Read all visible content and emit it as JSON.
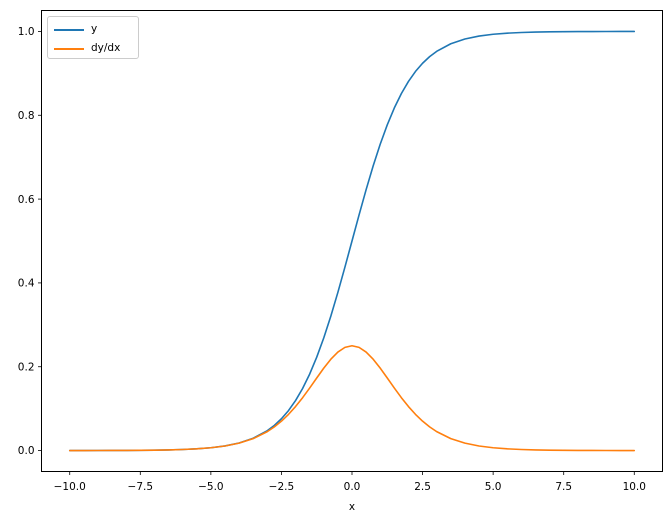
{
  "figure": {
    "background_color": "#ffffff",
    "axis_color": "#000000",
    "legend_border_color": "#cccccc"
  },
  "chart_data": {
    "type": "line",
    "title": "",
    "xlabel": "x",
    "ylabel": "",
    "xlim": [
      -11,
      11
    ],
    "ylim": [
      -0.05,
      1.05
    ],
    "grid": false,
    "x_ticks": [
      -10.0,
      -7.5,
      -5.0,
      -2.5,
      0.0,
      2.5,
      5.0,
      7.5,
      10.0
    ],
    "x_tick_labels": [
      "−10.0",
      "−7.5",
      "−5.0",
      "−2.5",
      "0.0",
      "2.5",
      "5.0",
      "7.5",
      "10.0"
    ],
    "y_ticks": [
      0.0,
      0.2,
      0.4,
      0.6,
      0.8,
      1.0
    ],
    "y_tick_labels": [
      "0.0",
      "0.2",
      "0.4",
      "0.6",
      "0.8",
      "1.0"
    ],
    "legend": {
      "position": "upper left",
      "entries": [
        {
          "label": "y",
          "color": "#1f77b4"
        },
        {
          "label": "dy/dx",
          "color": "#ff7f0e"
        }
      ]
    },
    "x": [
      -10,
      -9.5,
      -9,
      -8.5,
      -8,
      -7.5,
      -7,
      -6.5,
      -6,
      -5.5,
      -5,
      -4.5,
      -4,
      -3.5,
      -3,
      -2.75,
      -2.5,
      -2.25,
      -2,
      -1.75,
      -1.5,
      -1.25,
      -1,
      -0.75,
      -0.5,
      -0.25,
      0,
      0.25,
      0.5,
      0.75,
      1,
      1.25,
      1.5,
      1.75,
      2,
      2.25,
      2.5,
      2.75,
      3,
      3.5,
      4,
      4.5,
      5,
      5.5,
      6,
      6.5,
      7,
      7.5,
      8,
      8.5,
      9,
      9.5,
      10
    ],
    "series": [
      {
        "name": "y",
        "color": "#1f77b4",
        "values": [
          5e-05,
          7e-05,
          0.00012,
          0.0002,
          0.00034,
          0.00055,
          0.00091,
          0.0015,
          0.00247,
          0.00407,
          0.00669,
          0.01099,
          0.01799,
          0.02931,
          0.04743,
          0.06009,
          0.07586,
          0.09535,
          0.1192,
          0.14805,
          0.18243,
          0.2227,
          0.26894,
          0.32082,
          0.37754,
          0.43782,
          0.5,
          0.56218,
          0.62246,
          0.67918,
          0.73106,
          0.7773,
          0.81757,
          0.85195,
          0.8808,
          0.90465,
          0.92414,
          0.93991,
          0.95257,
          0.97069,
          0.98201,
          0.98901,
          0.99331,
          0.99593,
          0.99753,
          0.9985,
          0.99909,
          0.99945,
          0.99966,
          0.9998,
          0.99988,
          0.99993,
          0.99995
        ]
      },
      {
        "name": "dy/dx",
        "color": "#ff7f0e",
        "values": [
          5e-05,
          7e-05,
          0.00012,
          0.0002,
          0.00034,
          0.00055,
          0.00091,
          0.0015,
          0.00246,
          0.00405,
          0.00665,
          0.01087,
          0.01766,
          0.02845,
          0.04518,
          0.05648,
          0.0701,
          0.08626,
          0.10499,
          0.12613,
          0.14915,
          0.17311,
          0.19661,
          0.2179,
          0.235,
          0.24613,
          0.25,
          0.24613,
          0.235,
          0.2179,
          0.19661,
          0.17311,
          0.14915,
          0.12613,
          0.10499,
          0.08626,
          0.0701,
          0.05648,
          0.04518,
          0.02845,
          0.01766,
          0.01087,
          0.00665,
          0.00405,
          0.00246,
          0.0015,
          0.00091,
          0.00055,
          0.00034,
          0.0002,
          0.00012,
          7e-05,
          5e-05
        ]
      }
    ]
  }
}
